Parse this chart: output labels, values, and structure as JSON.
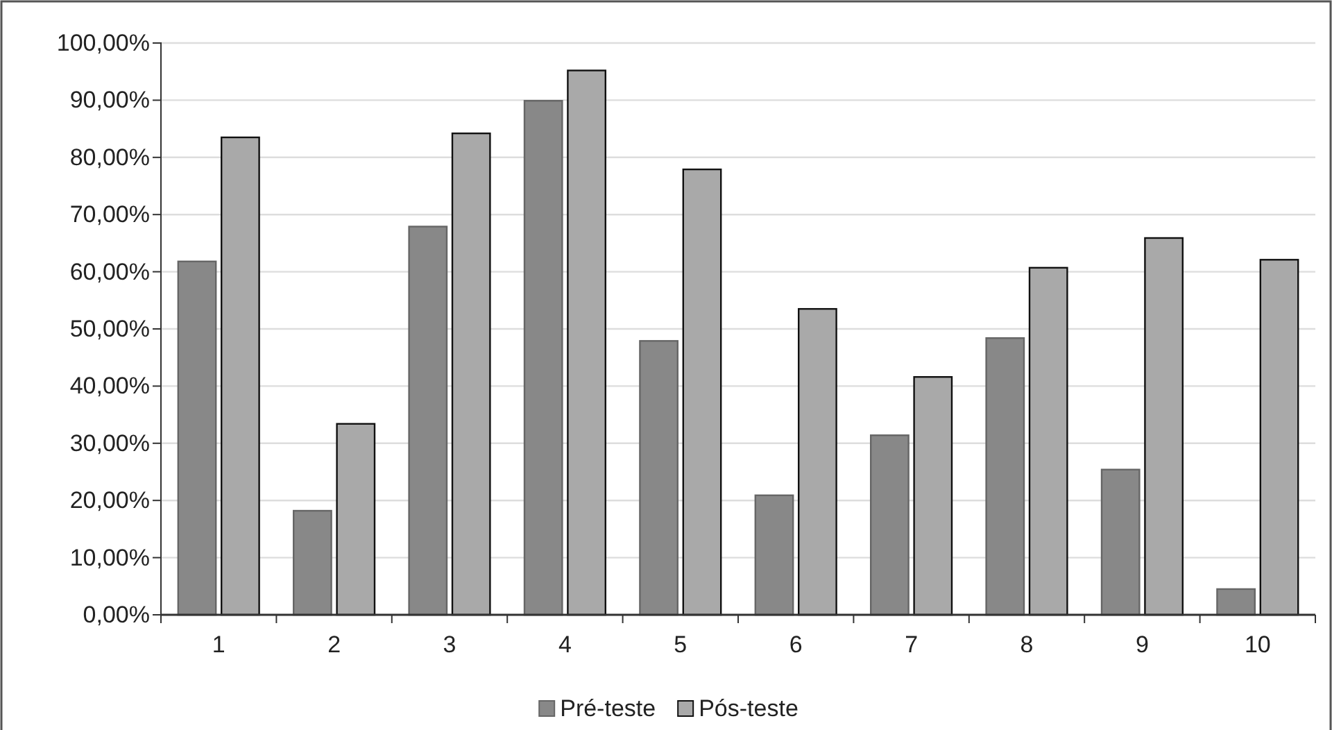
{
  "chart_data": {
    "type": "bar",
    "categories": [
      "1",
      "2",
      "3",
      "4",
      "5",
      "6",
      "7",
      "8",
      "9",
      "10"
    ],
    "series": [
      {
        "name": "Pré-teste",
        "color": "#888888",
        "values": [
          61.8,
          18.2,
          67.9,
          89.9,
          47.9,
          20.9,
          31.4,
          48.4,
          25.4,
          4.5
        ]
      },
      {
        "name": "Pós-teste",
        "color": "#a9a9a9",
        "values": [
          83.5,
          33.4,
          84.2,
          95.2,
          77.9,
          53.5,
          41.6,
          60.7,
          65.9,
          62.1
        ]
      }
    ],
    "ylim": [
      0,
      100
    ],
    "yticks": [
      {
        "value": 0,
        "label": "0,00%"
      },
      {
        "value": 10,
        "label": "10,00%"
      },
      {
        "value": 20,
        "label": "20,00%"
      },
      {
        "value": 30,
        "label": "30,00%"
      },
      {
        "value": 40,
        "label": "40,00%"
      },
      {
        "value": 50,
        "label": "50,00%"
      },
      {
        "value": 60,
        "label": "60,00%"
      },
      {
        "value": 70,
        "label": "70,00%"
      },
      {
        "value": 80,
        "label": "80,00%"
      },
      {
        "value": 90,
        "label": "90,00%"
      },
      {
        "value": 100,
        "label": "100,00%"
      }
    ],
    "grid": "y",
    "legend": "bottom"
  }
}
